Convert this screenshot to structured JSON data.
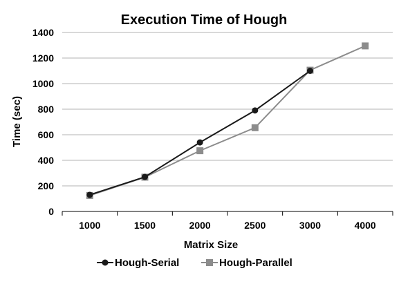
{
  "chart_data": {
    "type": "line",
    "title": "Execution Time of Hough",
    "xlabel": "Matrix Size",
    "ylabel": "Time (sec)",
    "categories": [
      "1000",
      "1500",
      "2000",
      "2500",
      "3000",
      "4000"
    ],
    "ylim": [
      0,
      1400
    ],
    "yticks": [
      0,
      200,
      400,
      600,
      800,
      1000,
      1200,
      1400
    ],
    "grid": true,
    "legend_position": "bottom",
    "series": [
      {
        "name": "Hough-Serial",
        "values": [
          130,
          270,
          540,
          790,
          1100,
          null
        ],
        "color": "#1a1a1a",
        "marker": "circle"
      },
      {
        "name": "Hough-Parallel",
        "values": [
          125,
          268,
          475,
          655,
          1105,
          1295
        ],
        "color": "#8c8c8c",
        "marker": "square"
      }
    ]
  }
}
